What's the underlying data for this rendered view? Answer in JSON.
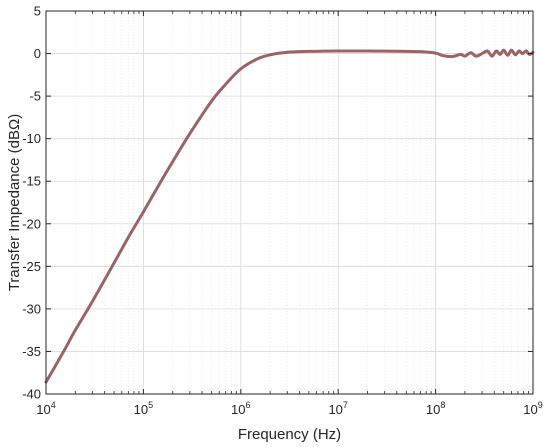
{
  "chart_data": {
    "type": "line",
    "title": "",
    "xlabel": "Frequency (Hz)",
    "ylabel": "Transfer Impedance (dBΩ)",
    "x_scale": "log",
    "xlim": [
      10000,
      1000000000
    ],
    "ylim": [
      -40,
      5
    ],
    "grid": true,
    "x_ticks": [
      {
        "value": 10000,
        "base": "10",
        "exp": "4"
      },
      {
        "value": 100000,
        "base": "10",
        "exp": "5"
      },
      {
        "value": 1000000,
        "base": "10",
        "exp": "6"
      },
      {
        "value": 10000000,
        "base": "10",
        "exp": "7"
      },
      {
        "value": 100000000,
        "base": "10",
        "exp": "8"
      },
      {
        "value": 1000000000,
        "base": "10",
        "exp": "9"
      }
    ],
    "y_ticks": [
      "5",
      "0",
      "-5",
      "-10",
      "-15",
      "-20",
      "-25",
      "-30",
      "-35",
      "-40"
    ],
    "line_color": "#9a6464",
    "series": [
      {
        "name": "",
        "x": [
          10000,
          15000,
          20000,
          30000,
          50000,
          70000,
          100000,
          150000,
          200000,
          300000,
          500000,
          700000,
          1000000,
          1500000,
          2000000,
          3000000,
          5000000,
          7000000,
          10000000,
          20000000,
          30000000,
          50000000,
          70000000,
          100000000,
          120000000,
          150000000,
          180000000,
          200000000,
          230000000,
          260000000,
          300000000,
          340000000,
          380000000,
          420000000,
          460000000,
          500000000,
          550000000,
          600000000,
          660000000,
          720000000,
          780000000,
          850000000,
          920000000,
          1000000000
        ],
        "y": [
          -38.6,
          -35.1,
          -32.5,
          -29.1,
          -24.6,
          -21.6,
          -18.6,
          -15.1,
          -12.7,
          -9.4,
          -5.6,
          -3.6,
          -1.8,
          -0.6,
          -0.15,
          0.15,
          0.25,
          0.28,
          0.3,
          0.3,
          0.28,
          0.25,
          0.22,
          0.05,
          -0.25,
          -0.35,
          -0.1,
          -0.3,
          0.1,
          -0.3,
          0.0,
          0.3,
          -0.3,
          0.3,
          -0.1,
          0.4,
          -0.2,
          0.4,
          -0.15,
          0.3,
          0.0,
          0.3,
          -0.1,
          0.15
        ]
      }
    ]
  }
}
